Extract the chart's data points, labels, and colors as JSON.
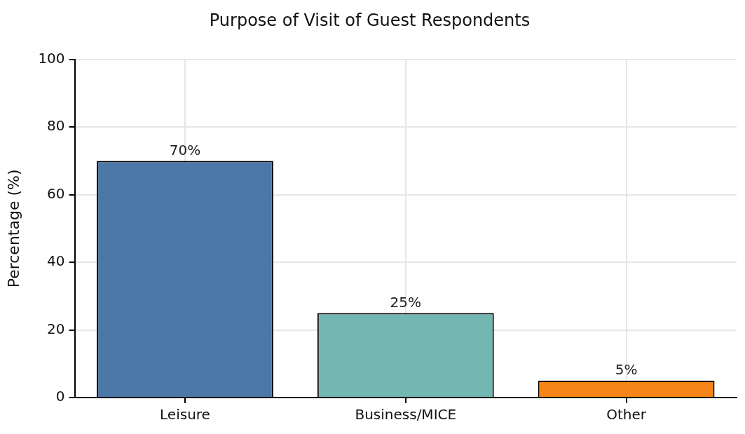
{
  "chart_data": {
    "type": "bar",
    "title": "Purpose of Visit of Guest Respondents",
    "ylabel": "Percentage (%)",
    "categories": [
      "Leisure",
      "Business/MICE",
      "Other"
    ],
    "values": [
      70,
      25,
      5
    ],
    "colors": [
      "#4c78a8",
      "#72b7b2",
      "#f58518"
    ],
    "value_labels": [
      "70%",
      "25%",
      "5%"
    ],
    "ylim": [
      0,
      100
    ],
    "yticks": [
      0,
      20,
      40,
      60,
      80,
      100
    ],
    "grid": true,
    "legend": false
  }
}
